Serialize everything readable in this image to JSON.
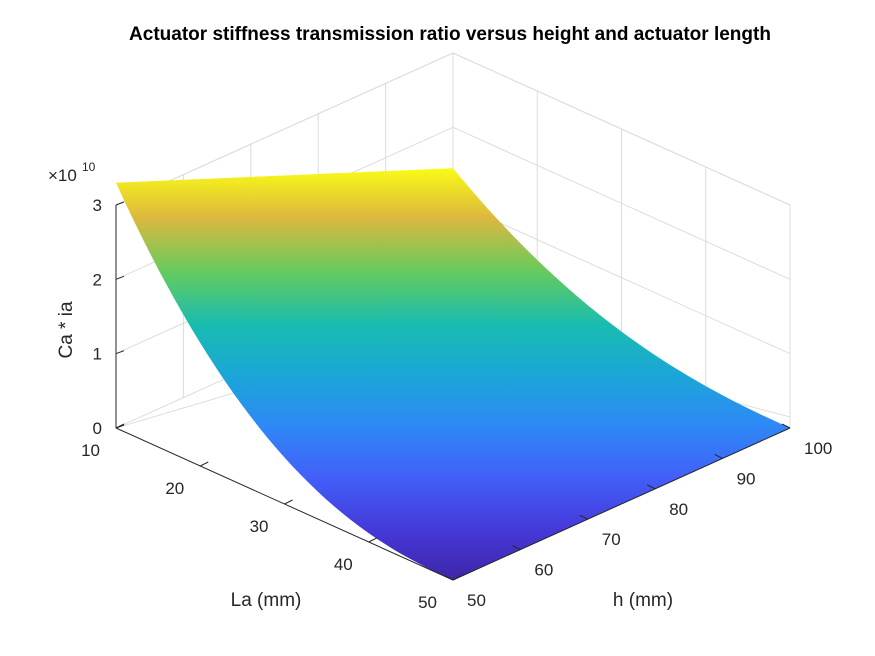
{
  "chart_data": {
    "type": "surface",
    "title": "Actuator stiffness transmission ratio versus height and actuator length",
    "x_axis": {
      "label": "La (mm)",
      "ticks": [
        10,
        20,
        30,
        40,
        50
      ],
      "range": [
        10,
        50
      ]
    },
    "y_axis": {
      "label": "h (mm)",
      "ticks": [
        50,
        60,
        70,
        80,
        90,
        100
      ],
      "range": [
        50,
        100
      ]
    },
    "z_axis": {
      "label": "Ca * ia",
      "ticks": [
        0,
        1,
        2,
        3
      ],
      "range": [
        0,
        3
      ],
      "exponent_label": "×10",
      "exponent_power": "10"
    },
    "grid": true,
    "colormap": "parula",
    "corner_values_e10": [
      {
        "La": 10,
        "h": 50,
        "value": 3.3
      },
      {
        "La": 10,
        "h": 100,
        "value": 1.45
      },
      {
        "La": 50,
        "h": 50,
        "value": 0.0
      },
      {
        "La": 50,
        "h": 100,
        "value": 0.0
      }
    ]
  }
}
